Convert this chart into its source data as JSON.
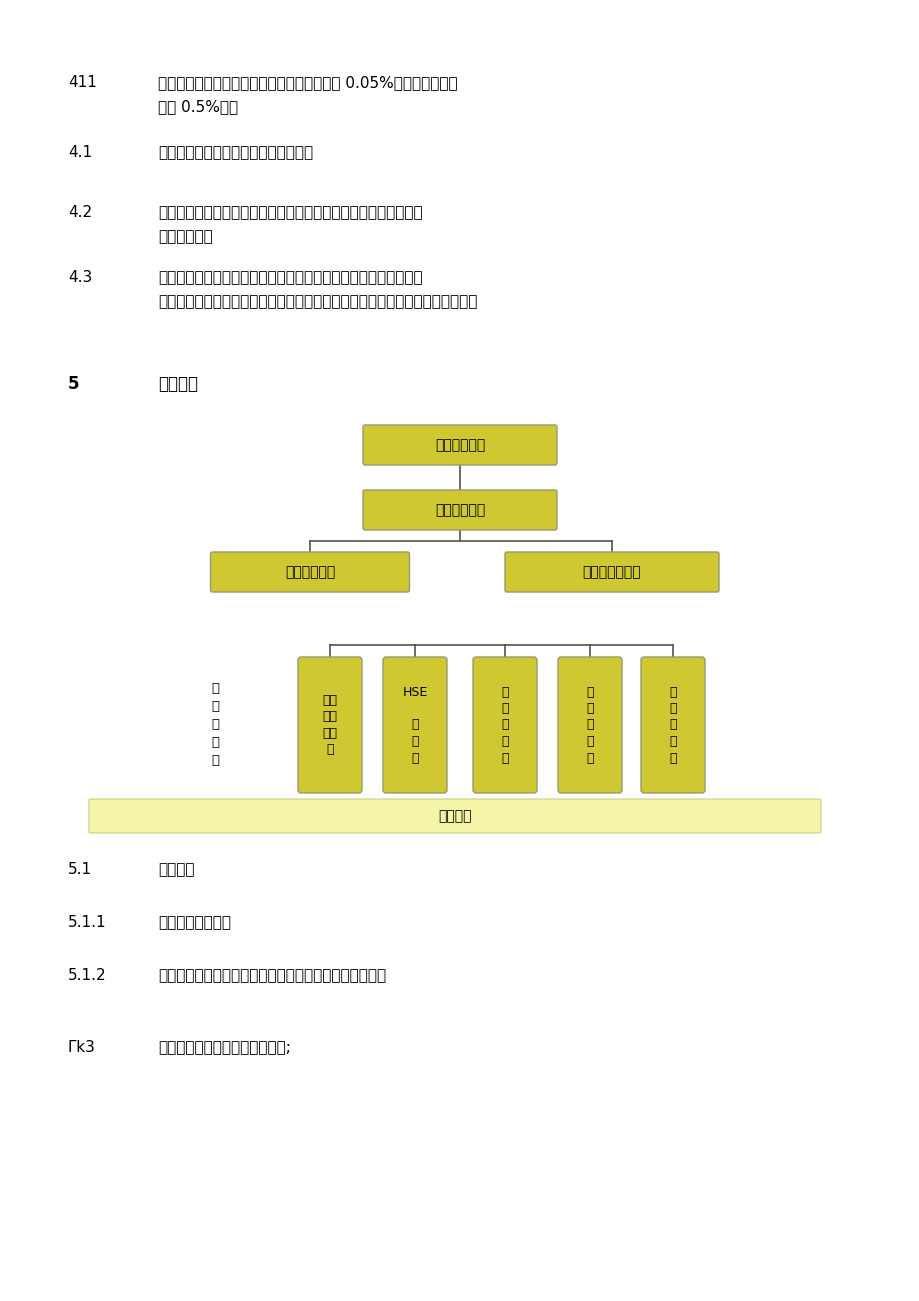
{
  "bg_color": "#ffffff",
  "box_fill": "#cfc830",
  "box_edge": "#999970",
  "cyl_fill": "#cfc830",
  "bar_fill": "#f5f5a8",
  "bar_edge": "#cccc88",
  "line_color": "#555544",
  "items_top": [
    {
      "num": "411",
      "lines": [
        "杜绝因工死亡，现场施工人员的重伤率不大于 0.05%。、负伤频率不",
        "大于 0.5%。；"
      ]
    },
    {
      "num": "4.1",
      "lines": [
        "不发生高处坠落伤亡事故和触电事故。"
      ]
    },
    {
      "num": "4.2",
      "lines": [
        "杜绝因施工造成的道路交通中断，管道、通信、电力管线损坏等施",
        "工责任事故。"
      ]
    },
    {
      "num": "4.3",
      "lines": [
        "坚持《四不放过》原则：事故未采取防范措施不放过、事故相关责",
        "任人未处理不放过、员工未受到安全教育培训不放过、事故原因未查清不放过。"
      ]
    }
  ],
  "section5_num": "5",
  "section5_title": "组织机构",
  "pm_label": "项目经理：孙",
  "fm_label": "现场经理：陶",
  "ce_label": "总工程师：高",
  "vpm_label": "项目副经理：刘",
  "eng_dept_label": "工\n程\n部\n：\n陶",
  "cyl_labels": [
    "技术\n质量\n部：\n刘",
    "HSE\n\n部\n：\n刘",
    "供\n应\n部\n：\n王",
    "经\n营\n部\n：\n吴",
    "综\n合\n办\n：\n吴"
  ],
  "cyl_bold": [
    false,
    false,
    true,
    false,
    false
  ],
  "bottom_bar_text": "作业单位",
  "items_bottom": [
    {
      "num": "5.1",
      "text": "管理人员"
    },
    {
      "num": "5.1.1",
      "text": "现场负责人职责："
    },
    {
      "num": "5.1.2",
      "text": "按照业主要求提出高处作业申请，办理高处作业许可证；"
    },
    {
      "num": "Гk3",
      "text": "对作业人员作业前进行安全交底;"
    }
  ]
}
